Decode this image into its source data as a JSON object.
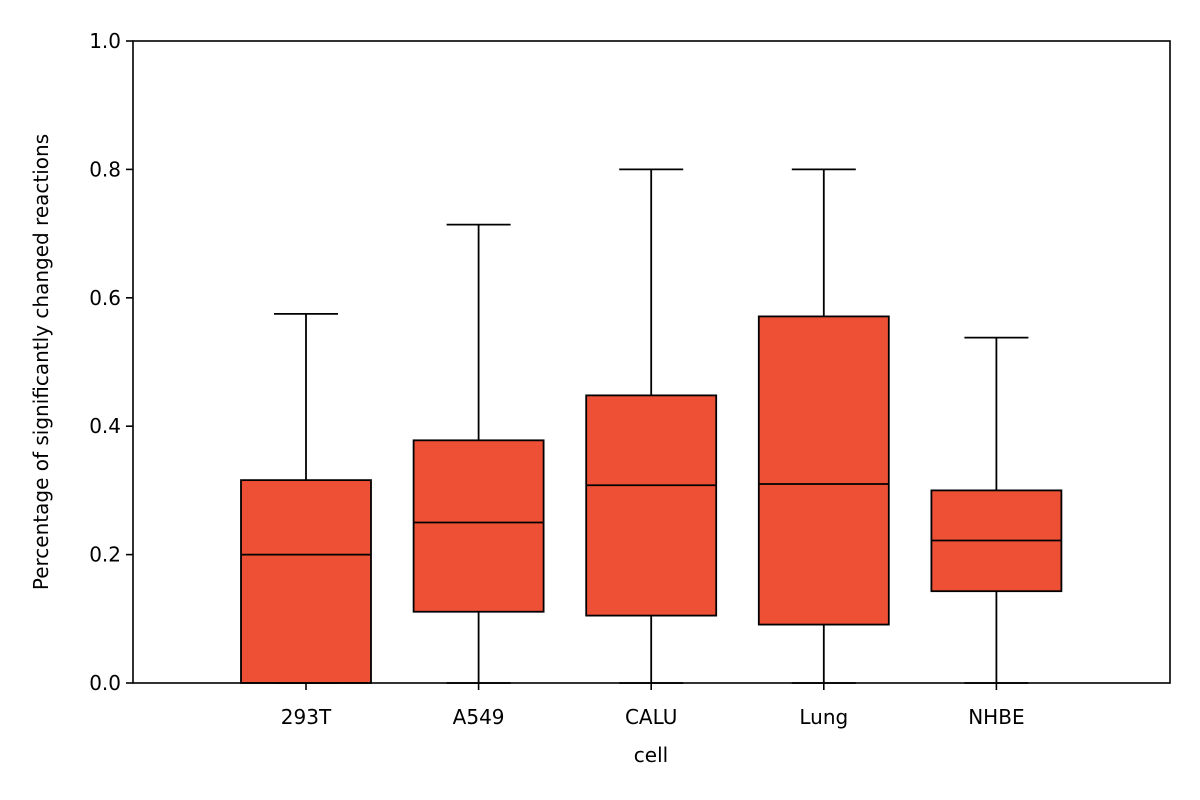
{
  "chart_data": {
    "type": "box",
    "xlabel": "cell",
    "ylabel": "Percentage of significantly changed reactions",
    "ylim": [
      0.0,
      1.0
    ],
    "yticks": [
      0.0,
      0.2,
      0.4,
      0.6,
      0.8,
      1.0
    ],
    "ytick_labels": [
      "0.0",
      "0.2",
      "0.4",
      "0.6",
      "0.8",
      "1.0"
    ],
    "categories": [
      "293T",
      "A549",
      "CALU",
      "Lung",
      "NHBE"
    ],
    "boxes": [
      {
        "category": "293T",
        "whisker_low": 0.0,
        "q1": 0.0,
        "median": 0.2,
        "q3": 0.316,
        "whisker_high": 0.575
      },
      {
        "category": "A549",
        "whisker_low": 0.0,
        "q1": 0.111,
        "median": 0.25,
        "q3": 0.378,
        "whisker_high": 0.714
      },
      {
        "category": "CALU",
        "whisker_low": 0.0,
        "q1": 0.105,
        "median": 0.308,
        "q3": 0.448,
        "whisker_high": 0.8
      },
      {
        "category": "Lung",
        "whisker_low": 0.0,
        "q1": 0.091,
        "median": 0.31,
        "q3": 0.571,
        "whisker_high": 0.8
      },
      {
        "category": "NHBE",
        "whisker_low": 0.0,
        "q1": 0.143,
        "median": 0.222,
        "q3": 0.3,
        "whisker_high": 0.538
      }
    ],
    "box_color": "#ee5036",
    "edge_color": "#000000",
    "grid": false,
    "legend": "none"
  }
}
